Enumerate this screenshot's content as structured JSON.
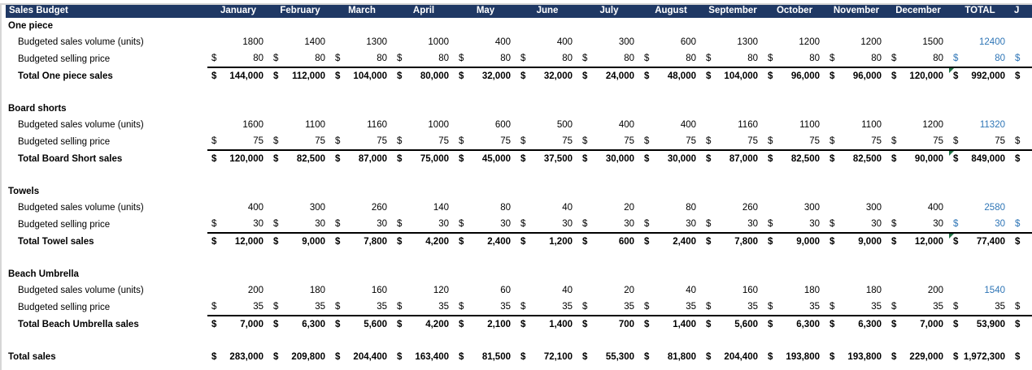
{
  "colors": {
    "header_bg": "#1F3864",
    "accent_blue": "#2E75B6",
    "flag_green": "#217346",
    "edge_gray": "#D6D6D6"
  },
  "currency_symbol": "$",
  "header": {
    "title": "Sales Budget",
    "months": [
      "January",
      "February",
      "March",
      "April",
      "May",
      "June",
      "July",
      "August",
      "September",
      "October",
      "November",
      "December"
    ],
    "total_label": "TOTAL",
    "partial_next_column": "J"
  },
  "row_labels": {
    "volume": "Budgeted sales volume (units)",
    "price": "Budgeted selling price"
  },
  "sections": [
    {
      "name": "One piece",
      "total_label": "Total One piece sales",
      "volumes": [
        "1800",
        "1400",
        "1300",
        "1000",
        "400",
        "400",
        "300",
        "600",
        "1300",
        "1200",
        "1200",
        "1500"
      ],
      "volume_total": "12400",
      "price": "80",
      "price_total": "80",
      "price_total_blue": true,
      "sales": [
        "144,000",
        "112,000",
        "104,000",
        "80,000",
        "32,000",
        "32,000",
        "24,000",
        "48,000",
        "104,000",
        "96,000",
        "96,000",
        "120,000"
      ],
      "sales_total": "992,000",
      "error_flag": true
    },
    {
      "name": "Board shorts",
      "total_label": "Total Board Short sales",
      "volumes": [
        "1600",
        "1100",
        "1160",
        "1000",
        "600",
        "500",
        "400",
        "400",
        "1160",
        "1100",
        "1100",
        "1200"
      ],
      "volume_total": "11320",
      "price": "75",
      "price_total": "75",
      "price_total_blue": false,
      "sales": [
        "120,000",
        "82,500",
        "87,000",
        "75,000",
        "45,000",
        "37,500",
        "30,000",
        "30,000",
        "87,000",
        "82,500",
        "82,500",
        "90,000"
      ],
      "sales_total": "849,000",
      "error_flag": true
    },
    {
      "name": "Towels",
      "total_label": "Total Towel sales",
      "volumes": [
        "400",
        "300",
        "260",
        "140",
        "80",
        "40",
        "20",
        "80",
        "260",
        "300",
        "300",
        "400"
      ],
      "volume_total": "2580",
      "price": "30",
      "price_total": "30",
      "price_total_blue": true,
      "sales": [
        "12,000",
        "9,000",
        "7,800",
        "4,200",
        "2,400",
        "1,200",
        "600",
        "2,400",
        "7,800",
        "9,000",
        "9,000",
        "12,000"
      ],
      "sales_total": "77,400",
      "error_flag": true
    },
    {
      "name": "Beach Umbrella",
      "total_label": "Total Beach Umbrella sales",
      "volumes": [
        "200",
        "180",
        "160",
        "120",
        "60",
        "40",
        "20",
        "40",
        "160",
        "180",
        "180",
        "200"
      ],
      "volume_total": "1540",
      "price": "35",
      "price_total": "35",
      "price_total_blue": false,
      "sales": [
        "7,000",
        "6,300",
        "5,600",
        "4,200",
        "2,100",
        "1,400",
        "700",
        "1,400",
        "5,600",
        "6,300",
        "6,300",
        "7,000"
      ],
      "sales_total": "53,900",
      "error_flag": false
    }
  ],
  "grand_total": {
    "label": "Total sales",
    "values": [
      "283,000",
      "209,800",
      "204,400",
      "163,400",
      "81,500",
      "72,100",
      "55,300",
      "81,800",
      "204,400",
      "193,800",
      "193,800",
      "229,000"
    ],
    "total": "1,972,300"
  }
}
